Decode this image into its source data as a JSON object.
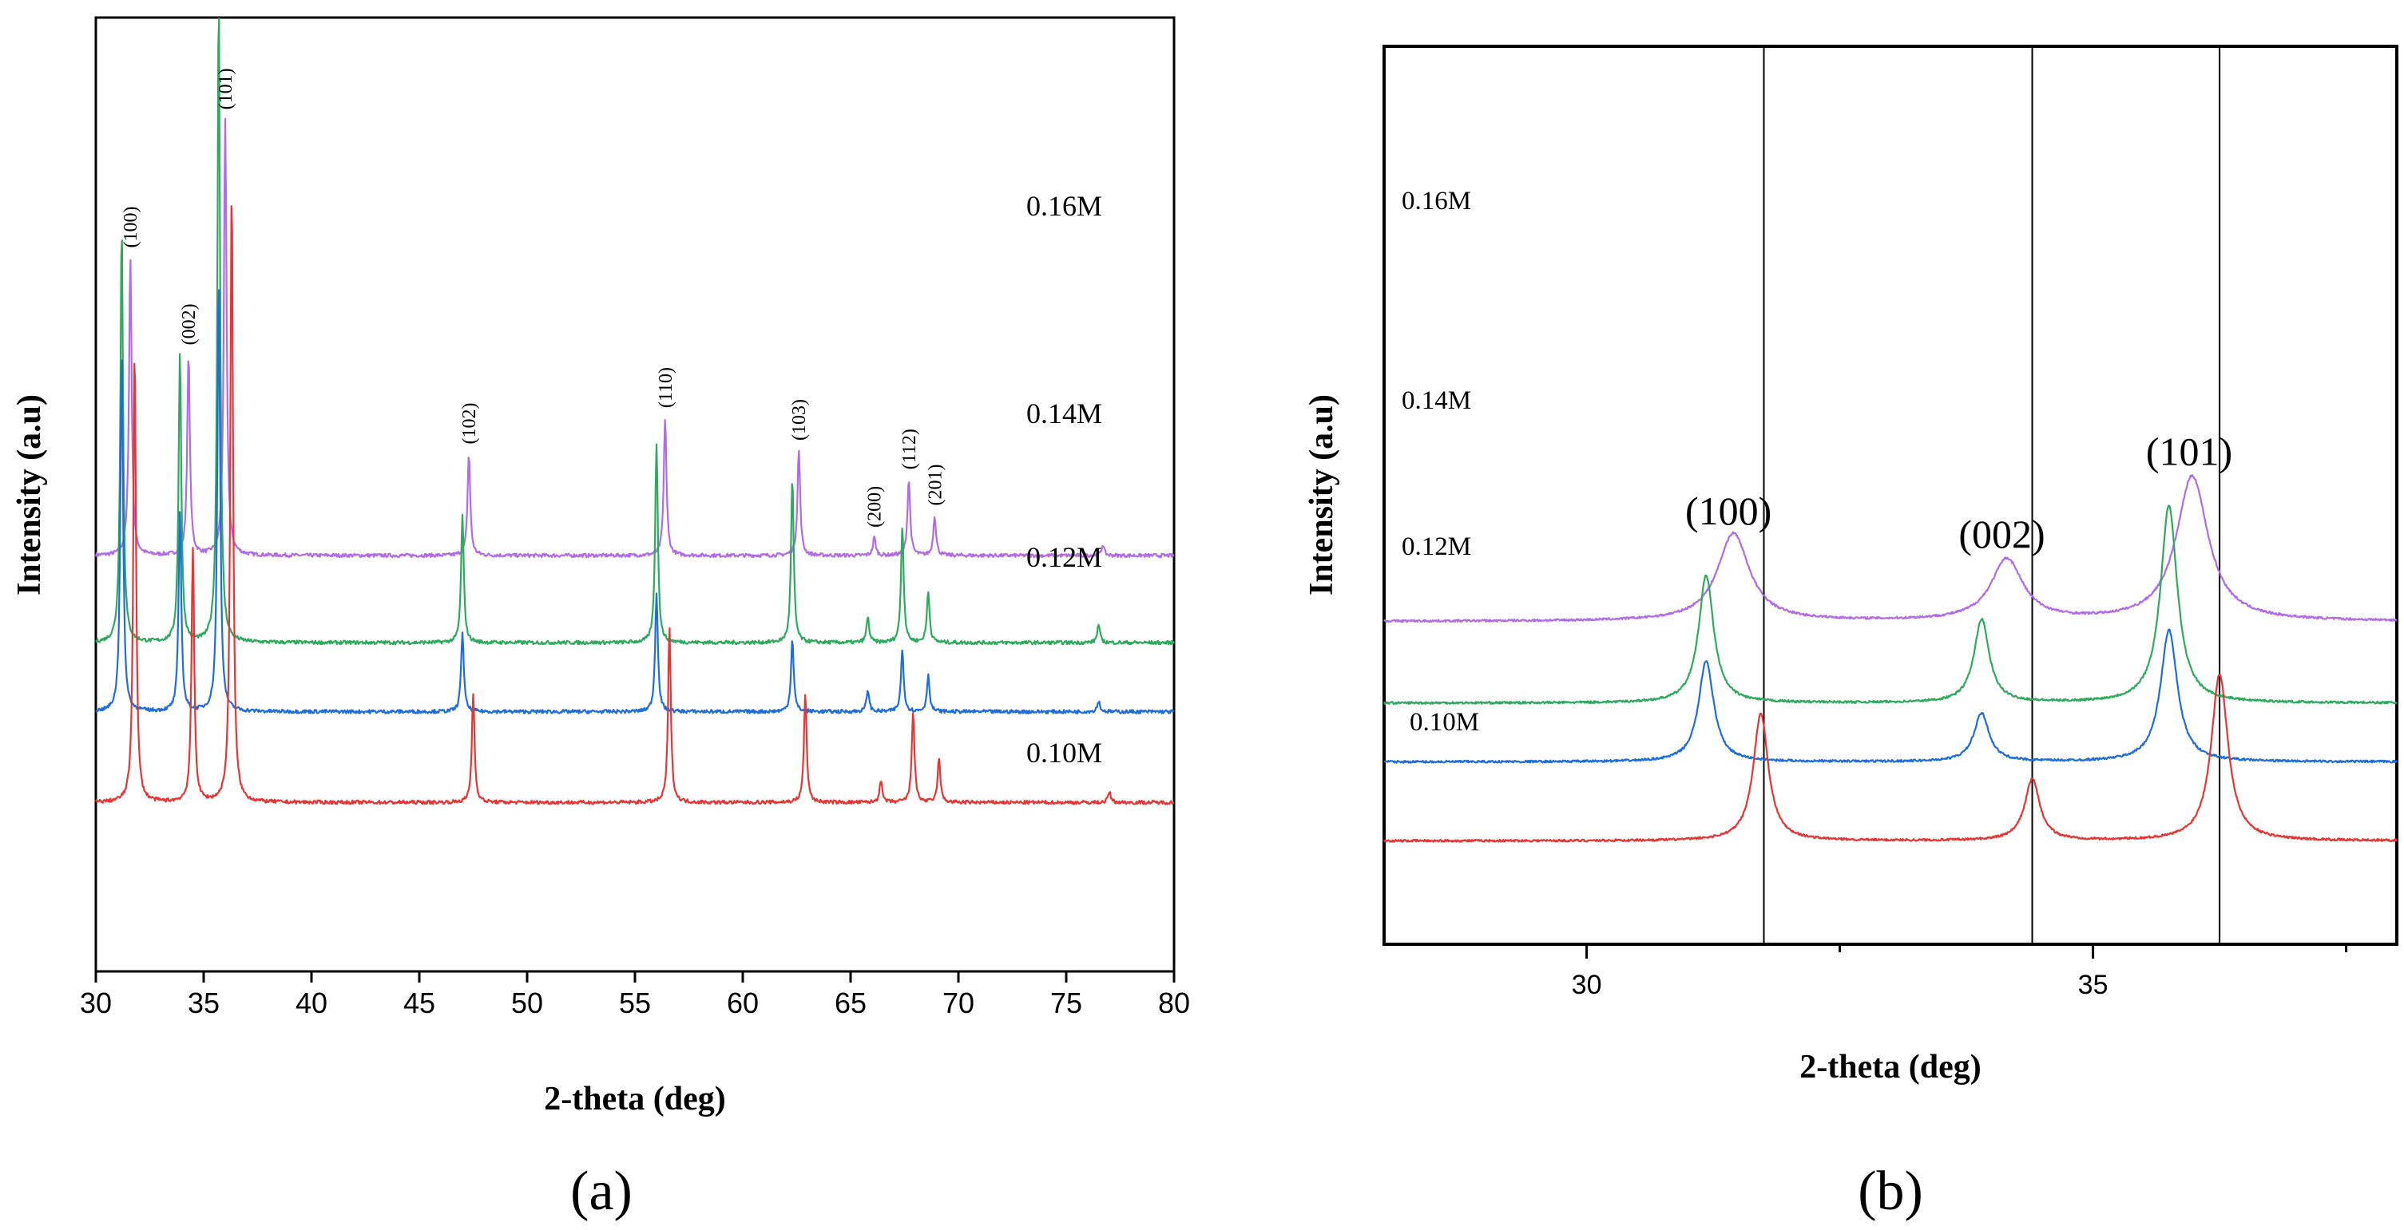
{
  "chart_data": [
    {
      "type": "line",
      "panel_label": "(a)",
      "xlabel": "2-theta (deg)",
      "ylabel": "Intensity (a.u)",
      "xlim": [
        30,
        80
      ],
      "x_ticks": [
        "30",
        "35",
        "40",
        "45",
        "50",
        "55",
        "60",
        "65",
        "70",
        "75",
        "80"
      ],
      "peak_labels": [
        {
          "label": "(100)",
          "x": 31.6
        },
        {
          "label": "(002)",
          "x": 34.3
        },
        {
          "label": "(101)",
          "x": 36.0
        },
        {
          "label": "(102)",
          "x": 47.3
        },
        {
          "label": "(110)",
          "x": 56.4
        },
        {
          "label": "(103)",
          "x": 62.6
        },
        {
          "label": "(200)",
          "x": 66.1
        },
        {
          "label": "(112)",
          "x": 67.7
        },
        {
          "label": "(201)",
          "x": 68.9
        }
      ],
      "series": [
        {
          "name": "0.16M",
          "color": "#b26be6",
          "baseline": 0.8,
          "peaks": [
            {
              "x": 31.6,
              "h": 0.82
            },
            {
              "x": 34.3,
              "h": 0.55
            },
            {
              "x": 36.0,
              "h": 1.2
            },
            {
              "x": 47.3,
              "h": 0.28
            },
            {
              "x": 56.4,
              "h": 0.38
            },
            {
              "x": 62.6,
              "h": 0.29
            },
            {
              "x": 66.1,
              "h": 0.05
            },
            {
              "x": 67.7,
              "h": 0.21
            },
            {
              "x": 68.9,
              "h": 0.11
            },
            {
              "x": 76.7,
              "h": 0.03
            }
          ]
        },
        {
          "name": "0.14M",
          "color": "#2eaa5e",
          "baseline": 0.56,
          "peaks": [
            {
              "x": 31.2,
              "h": 1.15
            },
            {
              "x": 33.9,
              "h": 0.8
            },
            {
              "x": 35.7,
              "h": 1.78
            },
            {
              "x": 47.0,
              "h": 0.35
            },
            {
              "x": 56.0,
              "h": 0.55
            },
            {
              "x": 62.3,
              "h": 0.45
            },
            {
              "x": 65.8,
              "h": 0.07
            },
            {
              "x": 67.4,
              "h": 0.32
            },
            {
              "x": 68.6,
              "h": 0.14
            },
            {
              "x": 76.5,
              "h": 0.05
            }
          ]
        },
        {
          "name": "0.12M",
          "color": "#1f6ddb",
          "baseline": 0.37,
          "peaks": [
            {
              "x": 31.2,
              "h": 1.0
            },
            {
              "x": 33.9,
              "h": 0.55
            },
            {
              "x": 35.7,
              "h": 1.2
            },
            {
              "x": 47.0,
              "h": 0.22
            },
            {
              "x": 56.0,
              "h": 0.33
            },
            {
              "x": 62.3,
              "h": 0.2
            },
            {
              "x": 65.8,
              "h": 0.06
            },
            {
              "x": 67.4,
              "h": 0.17
            },
            {
              "x": 68.6,
              "h": 0.1
            },
            {
              "x": 76.5,
              "h": 0.03
            }
          ]
        },
        {
          "name": "0.10M",
          "color": "#e63535",
          "baseline": 0.12,
          "peaks": [
            {
              "x": 31.8,
              "h": 1.25
            },
            {
              "x": 34.5,
              "h": 0.7
            },
            {
              "x": 36.3,
              "h": 1.7
            },
            {
              "x": 47.5,
              "h": 0.3
            },
            {
              "x": 56.6,
              "h": 0.48
            },
            {
              "x": 62.9,
              "h": 0.3
            },
            {
              "x": 66.4,
              "h": 0.06
            },
            {
              "x": 67.9,
              "h": 0.25
            },
            {
              "x": 69.1,
              "h": 0.12
            },
            {
              "x": 77.0,
              "h": 0.03
            }
          ]
        }
      ]
    },
    {
      "type": "line",
      "panel_label": "(b)",
      "xlabel": "2-theta (deg)",
      "ylabel": "Intensity (a.u)",
      "xlim": [
        28,
        38
      ],
      "x_ticks": [
        "30",
        "35"
      ],
      "reference_lines": [
        31.75,
        34.4,
        36.25
      ],
      "peak_labels": [
        {
          "label": "(100)",
          "x": 31.4
        },
        {
          "label": "(002)",
          "x": 34.1
        },
        {
          "label": "(101)",
          "x": 35.95
        }
      ],
      "series": [
        {
          "name": "0.16M",
          "color": "#b26be6",
          "baseline": 1.65,
          "peaks": [
            {
              "x": 31.45,
              "h": 1.0,
              "w": 0.19
            },
            {
              "x": 34.15,
              "h": 0.7,
              "w": 0.19
            },
            {
              "x": 35.98,
              "h": 1.65,
              "w": 0.19
            }
          ]
        },
        {
          "name": "0.14M",
          "color": "#2eaa5e",
          "baseline": 0.72,
          "peaks": [
            {
              "x": 31.18,
              "h": 1.45,
              "w": 0.09
            },
            {
              "x": 33.9,
              "h": 0.95,
              "w": 0.09
            },
            {
              "x": 35.75,
              "h": 2.25,
              "w": 0.1
            }
          ]
        },
        {
          "name": "0.12M",
          "color": "#1f6ddb",
          "baseline": 0.05,
          "peaks": [
            {
              "x": 31.18,
              "h": 1.15,
              "w": 0.09
            },
            {
              "x": 33.9,
              "h": 0.55,
              "w": 0.09
            },
            {
              "x": 35.75,
              "h": 1.5,
              "w": 0.1
            }
          ]
        },
        {
          "name": "0.10M",
          "color": "#e63535",
          "baseline": -0.85,
          "peaks": [
            {
              "x": 31.72,
              "h": 1.45,
              "w": 0.09
            },
            {
              "x": 34.4,
              "h": 0.7,
              "w": 0.09
            },
            {
              "x": 36.25,
              "h": 1.9,
              "w": 0.1
            }
          ]
        }
      ]
    }
  ]
}
